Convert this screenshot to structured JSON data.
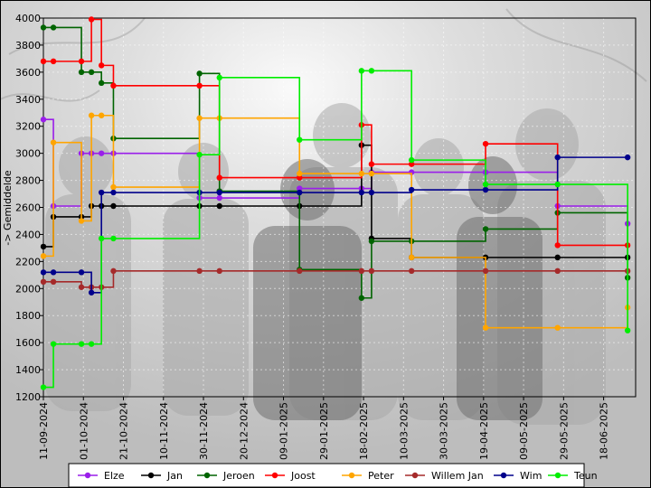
{
  "chart_data": {
    "type": "line",
    "title": "",
    "xlabel": "",
    "ylabel": "-> Gemiddelde",
    "ylim": [
      1200,
      4000
    ],
    "yticks": [
      1200,
      1400,
      1600,
      1800,
      2000,
      2200,
      2400,
      2600,
      2800,
      3000,
      3200,
      3400,
      3600,
      3800,
      4000
    ],
    "xlim": [
      "2024-09-11",
      "2025-07-04"
    ],
    "xticks": [
      "11-09-2024",
      "01-10-2024",
      "21-10-2024",
      "10-11-2024",
      "30-11-2024",
      "20-12-2024",
      "09-01-2025",
      "29-01-2025",
      "18-02-2025",
      "10-03-2025",
      "30-03-2025",
      "19-04-2025",
      "09-05-2025",
      "29-05-2025",
      "18-06-2025"
    ],
    "grid": true,
    "legend_position": "bottom",
    "series": [
      {
        "name": "Elze",
        "color": "#9a1eea",
        "points": [
          [
            "2024-09-11",
            3250
          ],
          [
            "2024-09-16",
            2610
          ],
          [
            "2024-09-30",
            3000
          ],
          [
            "2024-10-05",
            3000
          ],
          [
            "2024-10-10",
            3000
          ],
          [
            "2024-10-16",
            3000
          ],
          [
            "2024-11-28",
            2670
          ],
          [
            "2024-12-08",
            2670
          ],
          [
            "2025-01-17",
            2740
          ],
          [
            "2025-02-17",
            2740
          ],
          [
            "2025-02-22",
            2860
          ],
          [
            "2025-03-14",
            2860
          ],
          [
            "2025-04-20",
            2860
          ],
          [
            "2025-05-26",
            2610
          ],
          [
            "2025-06-30",
            2480
          ]
        ]
      },
      {
        "name": "Jan",
        "color": "#000000",
        "points": [
          [
            "2024-09-11",
            2310
          ],
          [
            "2024-09-16",
            2530
          ],
          [
            "2024-09-30",
            2530
          ],
          [
            "2024-10-05",
            2610
          ],
          [
            "2024-10-10",
            2610
          ],
          [
            "2024-10-16",
            2610
          ],
          [
            "2024-11-28",
            2610
          ],
          [
            "2024-12-08",
            2610
          ],
          [
            "2025-01-17",
            2610
          ],
          [
            "2025-02-17",
            3060
          ],
          [
            "2025-02-22",
            2370
          ],
          [
            "2025-03-14",
            2230
          ],
          [
            "2025-04-20",
            2230
          ],
          [
            "2025-05-26",
            2230
          ],
          [
            "2025-06-30",
            2230
          ]
        ]
      },
      {
        "name": "Jeroen",
        "color": "#006400",
        "points": [
          [
            "2024-09-11",
            3930
          ],
          [
            "2024-09-16",
            3930
          ],
          [
            "2024-09-30",
            3600
          ],
          [
            "2024-10-05",
            3600
          ],
          [
            "2024-10-10",
            3520
          ],
          [
            "2024-10-16",
            3110
          ],
          [
            "2024-11-28",
            3590
          ],
          [
            "2024-12-08",
            2720
          ],
          [
            "2025-01-17",
            2140
          ],
          [
            "2025-02-17",
            1930
          ],
          [
            "2025-02-22",
            2350
          ],
          [
            "2025-03-14",
            2350
          ],
          [
            "2025-04-20",
            2440
          ],
          [
            "2025-05-26",
            2560
          ],
          [
            "2025-06-30",
            2080
          ]
        ]
      },
      {
        "name": "Joost",
        "color": "#ff0000",
        "points": [
          [
            "2024-09-11",
            3680
          ],
          [
            "2024-09-16",
            3680
          ],
          [
            "2024-09-30",
            3680
          ],
          [
            "2024-10-05",
            3990
          ],
          [
            "2024-10-10",
            3650
          ],
          [
            "2024-10-16",
            3500
          ],
          [
            "2024-11-28",
            3500
          ],
          [
            "2024-12-08",
            2820
          ],
          [
            "2025-01-17",
            2820
          ],
          [
            "2025-02-17",
            3210
          ],
          [
            "2025-02-22",
            2920
          ],
          [
            "2025-03-14",
            2920
          ],
          [
            "2025-04-20",
            3070
          ],
          [
            "2025-05-26",
            2320
          ],
          [
            "2025-06-30",
            2320
          ]
        ]
      },
      {
        "name": "Peter",
        "color": "#ffa500",
        "points": [
          [
            "2024-09-11",
            2240
          ],
          [
            "2024-09-16",
            3080
          ],
          [
            "2024-09-30",
            2500
          ],
          [
            "2024-10-05",
            3280
          ],
          [
            "2024-10-10",
            3280
          ],
          [
            "2024-10-16",
            2750
          ],
          [
            "2024-11-28",
            3260
          ],
          [
            "2024-12-08",
            3260
          ],
          [
            "2025-01-17",
            2850
          ],
          [
            "2025-02-17",
            2850
          ],
          [
            "2025-02-22",
            2850
          ],
          [
            "2025-03-14",
            2230
          ],
          [
            "2025-04-20",
            1710
          ],
          [
            "2025-05-26",
            1710
          ],
          [
            "2025-06-30",
            1860
          ]
        ]
      },
      {
        "name": "Willem Jan",
        "color": "#a52a2a",
        "points": [
          [
            "2024-09-11",
            2050
          ],
          [
            "2024-09-16",
            2050
          ],
          [
            "2024-09-30",
            2010
          ],
          [
            "2024-10-05",
            2010
          ],
          [
            "2024-10-10",
            2010
          ],
          [
            "2024-10-16",
            2130
          ],
          [
            "2024-11-28",
            2130
          ],
          [
            "2024-12-08",
            2130
          ],
          [
            "2025-01-17",
            2130
          ],
          [
            "2025-02-17",
            2130
          ],
          [
            "2025-02-22",
            2130
          ],
          [
            "2025-03-14",
            2130
          ],
          [
            "2025-04-20",
            2130
          ],
          [
            "2025-05-26",
            2130
          ],
          [
            "2025-06-30",
            2130
          ]
        ]
      },
      {
        "name": "Wim",
        "color": "#00008b",
        "points": [
          [
            "2024-09-11",
            2120
          ],
          [
            "2024-09-16",
            2120
          ],
          [
            "2024-09-30",
            2120
          ],
          [
            "2024-10-05",
            1970
          ],
          [
            "2024-10-10",
            2710
          ],
          [
            "2024-10-16",
            2710
          ],
          [
            "2024-11-28",
            2710
          ],
          [
            "2024-12-08",
            2710
          ],
          [
            "2025-01-17",
            2710
          ],
          [
            "2025-02-17",
            2710
          ],
          [
            "2025-02-22",
            2710
          ],
          [
            "2025-03-14",
            2730
          ],
          [
            "2025-04-20",
            2730
          ],
          [
            "2025-05-26",
            2970
          ],
          [
            "2025-06-30",
            2970
          ]
        ]
      },
      {
        "name": "Teun",
        "color": "#00ee00",
        "points": [
          [
            "2024-09-11",
            1270
          ],
          [
            "2024-09-16",
            1590
          ],
          [
            "2024-09-30",
            1590
          ],
          [
            "2024-10-05",
            1590
          ],
          [
            "2024-10-10",
            2370
          ],
          [
            "2024-10-16",
            2370
          ],
          [
            "2024-11-28",
            2990
          ],
          [
            "2024-12-08",
            3560
          ],
          [
            "2025-01-17",
            3100
          ],
          [
            "2025-02-17",
            3610
          ],
          [
            "2025-02-22",
            3610
          ],
          [
            "2025-03-14",
            2950
          ],
          [
            "2025-04-20",
            2770
          ],
          [
            "2025-05-26",
            2770
          ],
          [
            "2025-06-30",
            1690
          ]
        ]
      }
    ]
  }
}
